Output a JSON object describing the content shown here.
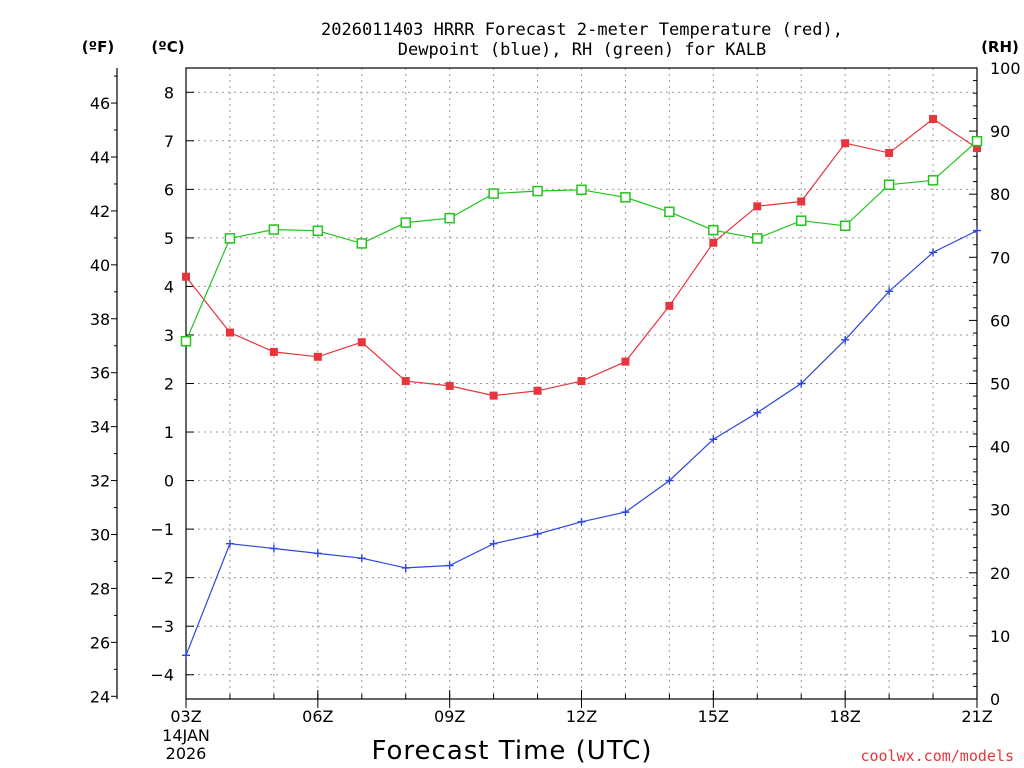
{
  "chart_data": {
    "type": "line",
    "title_line1": "2026011403 HRRR Forecast 2-meter Temperature (red),",
    "title_line2": "Dewpoint (blue), RH (green) for KALB",
    "xlabel": "Forecast Time (UTC)",
    "date_label_1": "14JAN",
    "date_label_2": "2026",
    "credit": "coolwx.com/models",
    "unit_f": "(ºF)",
    "unit_c": "(ºC)",
    "unit_rh": "(RH)",
    "x_hours": [
      3,
      4,
      5,
      6,
      7,
      8,
      9,
      10,
      11,
      12,
      13,
      14,
      15,
      16,
      17,
      18,
      19,
      20,
      21
    ],
    "xlim": [
      3,
      21
    ],
    "x_ticks": [
      {
        "hour": 3,
        "label": "03Z"
      },
      {
        "hour": 6,
        "label": "06Z"
      },
      {
        "hour": 9,
        "label": "09Z"
      },
      {
        "hour": 12,
        "label": "12Z"
      },
      {
        "hour": 15,
        "label": "15Z"
      },
      {
        "hour": 18,
        "label": "18Z"
      },
      {
        "hour": 21,
        "label": "21Z"
      }
    ],
    "celsius_axis": {
      "lim": [
        -4.5,
        8.5
      ],
      "ticks": [
        "-4",
        "-3",
        "-2",
        "-1",
        "0",
        "1",
        "2",
        "3",
        "4",
        "5",
        "6",
        "7",
        "8"
      ]
    },
    "fahrenheit_axis": {
      "ticks": [
        "24",
        "26",
        "28",
        "30",
        "32",
        "34",
        "36",
        "38",
        "40",
        "42",
        "44",
        "46"
      ]
    },
    "rh_axis": {
      "lim": [
        0,
        100
      ],
      "ticks": [
        "0",
        "10",
        "20",
        "30",
        "40",
        "50",
        "60",
        "70",
        "80",
        "90",
        "100"
      ]
    },
    "series": [
      {
        "name": "Temperature",
        "color": "#e8343c",
        "marker": "filled-square",
        "axis": "celsius",
        "values": [
          4.2,
          3.05,
          2.65,
          2.55,
          2.85,
          2.05,
          1.95,
          1.75,
          1.85,
          2.05,
          2.45,
          3.6,
          4.9,
          5.65,
          5.75,
          6.95,
          6.75,
          7.45,
          6.85
        ]
      },
      {
        "name": "Dewpoint",
        "color": "#2f46e0",
        "marker": "plus",
        "axis": "celsius",
        "values": [
          -3.6,
          -1.3,
          -1.4,
          -1.5,
          -1.6,
          -1.8,
          -1.75,
          -1.3,
          -1.1,
          -0.85,
          -0.65,
          0.0,
          0.85,
          1.4,
          2.0,
          2.9,
          3.9,
          4.7,
          5.15
        ]
      },
      {
        "name": "RH",
        "color": "#22c41c",
        "marker": "open-square",
        "axis": "rh",
        "values": [
          56.7,
          73.0,
          74.4,
          74.2,
          72.2,
          75.5,
          76.2,
          80.1,
          80.5,
          80.7,
          79.5,
          77.2,
          74.3,
          73.0,
          75.8,
          75.0,
          81.5,
          82.2,
          88.4
        ]
      }
    ]
  }
}
